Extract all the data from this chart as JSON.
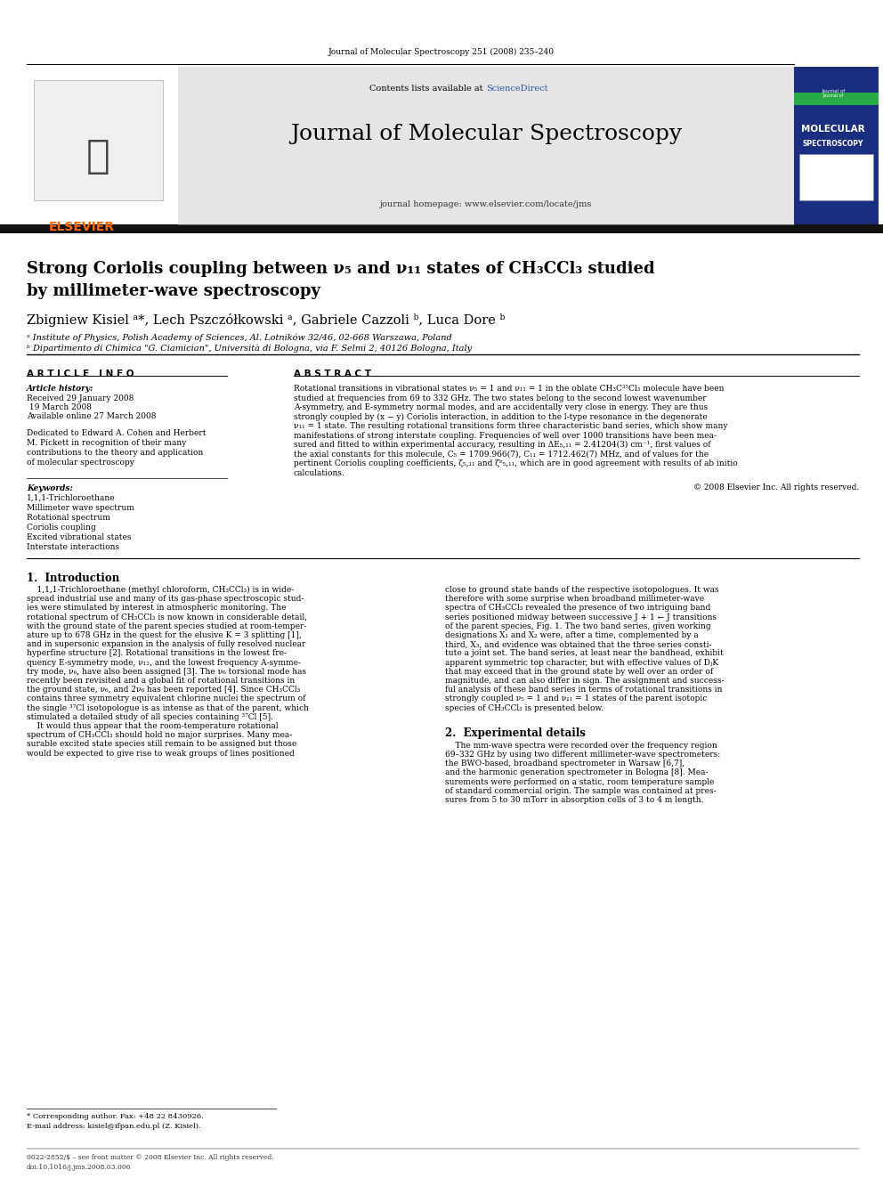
{
  "page_width": 9.92,
  "page_height": 13.23,
  "bg_color": "#ffffff",
  "journal_header": "Journal of Molecular Spectroscopy 251 (2008) 235–240",
  "journal_name": "Journal of Molecular Spectroscopy",
  "journal_homepage": "journal homepage: www.elsevier.com/locate/jms",
  "contents_line": "Contents lists available at ScienceDirect",
  "sciencedirect_color": "#2255aa",
  "elsevier_color": "#ff6600",
  "title_line1": "Strong Coriolis coupling between ν₅ and ν₁₁ states of CH₃CCl₃ studied",
  "title_line2": "by millimeter-wave spectroscopy",
  "authors": "Zbigniew Kisiel ᵃ*, Lech Pszczółkowski ᵃ, Gabriele Cazzoli ᵇ, Luca Dore ᵇ",
  "affil_a": "ᵃ Institute of Physics, Polish Academy of Sciences, Al. Lotników 32/46, 02-668 Warszawa, Poland",
  "affil_b": "ᵇ Dipartimento di Chimica \"G. Ciamician\", Università di Bologna, via F. Selmi 2, 40126 Bologna, Italy",
  "article_info_header": "A R T I C L E   I N F O",
  "abstract_header": "A B S T R A C T",
  "article_history_label": "Article history:",
  "received": "Received 29 January 2008",
  "revised": " 19 March 2008",
  "available": "Available online 27 March 2008",
  "ded_lines": [
    "Dedicated to Edward A. Cohen and Herbert",
    "M. Pickett in recognition of their many",
    "contributions to the theory and application",
    "of molecular spectroscopy"
  ],
  "keywords_label": "Keywords:",
  "keywords": [
    "1,1,1-Trichloroethane",
    "Millimeter wave spectrum",
    "Rotational spectrum",
    "Coriolis coupling",
    "Excited vibrational states",
    "Interstate interactions"
  ],
  "abstract_lines": [
    "Rotational transitions in vibrational states ν₅ = 1 and ν₁₁ = 1 in the oblate CH₃C³⁵Cl₃ molecule have been",
    "studied at frequencies from 69 to 332 GHz. The two states belong to the second lowest wavenumber",
    "A-symmetry, and E-symmetry normal modes, and are accidentally very close in energy. They are thus",
    "strongly coupled by (x − y) Coriolis interaction, in addition to the l-type resonance in the degenerate",
    "ν₁₁ = 1 state. The resulting rotational transitions form three characteristic band series, which show many",
    "manifestations of strong interstate coupling. Frequencies of well over 1000 transitions have been mea-",
    "sured and fitted to within experimental accuracy, resulting in ΔE₅,₁₁ = 2.41204(3) cm⁻¹, first values of",
    "the axial constants for this molecule, C₅ = 1709.966(7), C₁₁ = 1712.462(7) MHz, and of values for the",
    "pertinent Coriolis coupling coefficients, ζ₅,₁₁ and ζᵇ₅,₁₁, which are in good agreement with results of ab initio",
    "calculations."
  ],
  "copyright": "© 2008 Elsevier Inc. All rights reserved.",
  "section1_title": "1.  Introduction",
  "intro_col1_lines": [
    "    1,1,1-Trichloroethane (methyl chloroform, CH₃CCl₃) is in wide-",
    "spread industrial use and many of its gas-phase spectroscopic stud-",
    "ies were stimulated by interest in atmospheric monitoring. The",
    "rotational spectrum of CH₃CCl₃ is now known in considerable detail,",
    "with the ground state of the parent species studied at room-temper-",
    "ature up to 678 GHz in the quest for the elusive K = 3 splitting [1],",
    "and in supersonic expansion in the analysis of fully resolved nuclear",
    "hyperfine structure [2]. Rotational transitions in the lowest fre-",
    "quency E-symmetry mode, ν₁₂, and the lowest frequency A-symme-",
    "try mode, ν₆, have also been assigned [3]. The ν₆ torsional mode has",
    "recently been revisited and a global fit of rotational transitions in",
    "the ground state, ν₆, and 2ν₆ has been reported [4]. Since CH₃CCl₃",
    "contains three symmetry equivalent chlorine nuclei the spectrum of",
    "the single ³⁷Cl isotopologue is as intense as that of the parent, which",
    "stimulated a detailed study of all species containing ³⁷Cl [5].",
    "    It would thus appear that the room-temperature rotational",
    "spectrum of CH₃CCl₃ should hold no major surprises. Many mea-",
    "surable excited state species still remain to be assigned but those",
    "would be expected to give rise to weak groups of lines positioned"
  ],
  "intro_col2_lines": [
    "close to ground state bands of the respective isotopologues. It was",
    "therefore with some surprise when broadband millimeter-wave",
    "spectra of CH₃CCl₃ revealed the presence of two intriguing band",
    "series positioned midway between successive J + 1 ← J transitions",
    "of the parent species, Fig. 1. The two band series, given working",
    "designations X₁ and X₂ were, after a time, complemented by a",
    "third, X₃, and evidence was obtained that the three series consti-",
    "tute a joint set. The band series, at least near the bandhead, exhibit",
    "apparent symmetric top character, but with effective values of DⱼK",
    "that may exceed that in the ground state by well over an order of",
    "magnitude, and can also differ in sign. The assignment and success-",
    "ful analysis of these band series in terms of rotational transitions in",
    "strongly coupled ν₅ = 1 and ν₁₁ = 1 states of the parent isotopic",
    "species of CH₃CCl₃ is presented below."
  ],
  "section2_title": "2.  Experimental details",
  "exp_lines": [
    "    The mm-wave spectra were recorded over the frequency region",
    "69–332 GHz by using two different millimeter-wave spectrometers:",
    "the BWO-based, broadband spectrometer in Warsaw [6,7],",
    "and the harmonic generation spectrometer in Bologna [8]. Mea-",
    "surements were performed on a static, room temperature sample",
    "of standard commercial origin. The sample was contained at pres-",
    "sures from 5 to 30 mTorr in absorption cells of 3 to 4 m length."
  ],
  "footnote_star": "* Corresponding author. Fax: +48 22 8430926.",
  "footnote_email": "E-mail address: kisiel@ifpan.edu.pl (Z. Kisiel).",
  "footer_line1": "0022-2852/$ – see front matter © 2008 Elsevier Inc. All rights reserved.",
  "footer_line2": "doi:10.1016/j.jms.2008.03.006",
  "header_bar_color": "#111111",
  "gray_banner_color": "#e5e5e5",
  "cover_bg_color": "#1a2e80",
  "cover_green_color": "#2aaa44"
}
